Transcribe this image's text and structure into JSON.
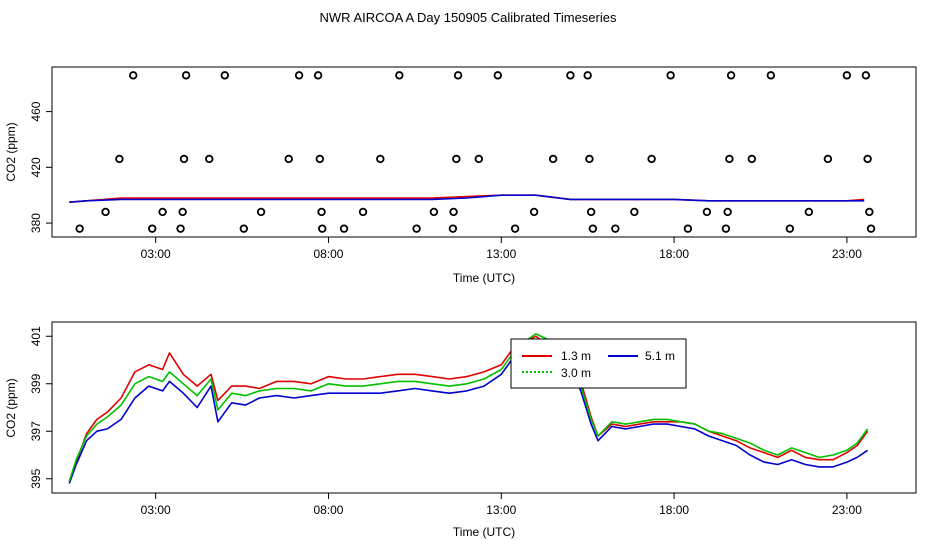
{
  "title": "NWR AIRCOA A  Day 150905  Calibrated Timeseries",
  "colors": {
    "red": "#e00000",
    "blue": "#0000d0",
    "green": "#00c000",
    "purple": "#7a2aa0",
    "axis": "#000000"
  },
  "chart_data": [
    {
      "type": "scatter",
      "title": "",
      "xlabel": "Time (UTC)",
      "ylabel": "CO2 (ppm)",
      "xlim": [
        0,
        25
      ],
      "ylim": [
        370,
        492
      ],
      "x_ticks": [
        3,
        8,
        13,
        18,
        23
      ],
      "x_tick_labels": [
        "03:00",
        "08:00",
        "13:00",
        "18:00",
        "23:00"
      ],
      "y_ticks": [
        380,
        420,
        460
      ],
      "y_tick_labels": [
        "380",
        "420",
        "460"
      ],
      "grid": false,
      "outliers": [
        {
          "x": 0.8,
          "y": 376
        },
        {
          "x": 1.55,
          "y": 388
        },
        {
          "x": 1.95,
          "y": 426
        },
        {
          "x": 2.35,
          "y": 486
        },
        {
          "x": 2.9,
          "y": 376
        },
        {
          "x": 3.2,
          "y": 388
        },
        {
          "x": 3.72,
          "y": 376
        },
        {
          "x": 3.78,
          "y": 388
        },
        {
          "x": 3.82,
          "y": 426
        },
        {
          "x": 3.88,
          "y": 486
        },
        {
          "x": 4.55,
          "y": 426
        },
        {
          "x": 5.0,
          "y": 486
        },
        {
          "x": 5.55,
          "y": 376
        },
        {
          "x": 6.05,
          "y": 388
        },
        {
          "x": 6.85,
          "y": 426
        },
        {
          "x": 7.15,
          "y": 486
        },
        {
          "x": 7.7,
          "y": 486
        },
        {
          "x": 7.75,
          "y": 426
        },
        {
          "x": 7.8,
          "y": 388
        },
        {
          "x": 7.82,
          "y": 376
        },
        {
          "x": 8.45,
          "y": 376
        },
        {
          "x": 9.0,
          "y": 388
        },
        {
          "x": 9.5,
          "y": 426
        },
        {
          "x": 10.05,
          "y": 486
        },
        {
          "x": 10.55,
          "y": 376
        },
        {
          "x": 11.05,
          "y": 388
        },
        {
          "x": 11.6,
          "y": 376
        },
        {
          "x": 11.62,
          "y": 388
        },
        {
          "x": 11.7,
          "y": 426
        },
        {
          "x": 11.75,
          "y": 486
        },
        {
          "x": 12.35,
          "y": 426
        },
        {
          "x": 12.9,
          "y": 486
        },
        {
          "x": 13.4,
          "y": 376
        },
        {
          "x": 13.95,
          "y": 388
        },
        {
          "x": 14.5,
          "y": 426
        },
        {
          "x": 15.0,
          "y": 486
        },
        {
          "x": 15.5,
          "y": 486
        },
        {
          "x": 15.55,
          "y": 426
        },
        {
          "x": 15.6,
          "y": 388
        },
        {
          "x": 15.65,
          "y": 376
        },
        {
          "x": 16.3,
          "y": 376
        },
        {
          "x": 16.85,
          "y": 388
        },
        {
          "x": 17.35,
          "y": 426
        },
        {
          "x": 17.9,
          "y": 486
        },
        {
          "x": 18.4,
          "y": 376
        },
        {
          "x": 18.95,
          "y": 388
        },
        {
          "x": 19.5,
          "y": 376
        },
        {
          "x": 19.55,
          "y": 388
        },
        {
          "x": 19.6,
          "y": 426
        },
        {
          "x": 19.65,
          "y": 486
        },
        {
          "x": 20.25,
          "y": 426
        },
        {
          "x": 20.8,
          "y": 486
        },
        {
          "x": 21.35,
          "y": 376
        },
        {
          "x": 21.9,
          "y": 388
        },
        {
          "x": 22.45,
          "y": 426
        },
        {
          "x": 23.0,
          "y": 486
        },
        {
          "x": 23.55,
          "y": 486
        },
        {
          "x": 23.6,
          "y": 426
        },
        {
          "x": 23.65,
          "y": 388
        },
        {
          "x": 23.7,
          "y": 376
        }
      ],
      "series": [
        {
          "color": "#e00000",
          "x": [
            0.5,
            1,
            2,
            3,
            4,
            5,
            6,
            7,
            8,
            9,
            10,
            11,
            12,
            13,
            14,
            15,
            16,
            17,
            18,
            19,
            20,
            21,
            22,
            23,
            23.5
          ],
          "y": [
            395,
            396,
            398,
            398,
            398,
            398,
            398,
            398,
            398,
            398,
            398,
            398,
            399,
            400,
            400,
            397,
            397,
            397,
            397,
            396,
            396,
            396,
            396,
            396,
            397
          ]
        },
        {
          "color": "#0000d0",
          "x": [
            0.5,
            1,
            2,
            3,
            4,
            5,
            6,
            7,
            8,
            9,
            10,
            11,
            12,
            13,
            14,
            15,
            16,
            17,
            18,
            19,
            20,
            21,
            22,
            23,
            23.5
          ],
          "y": [
            395,
            396,
            397,
            397,
            397,
            397,
            397,
            397,
            397,
            397,
            397,
            397,
            398,
            400,
            400,
            397,
            397,
            397,
            397,
            396,
            396,
            396,
            396,
            396,
            396
          ]
        }
      ]
    },
    {
      "type": "line",
      "title": "",
      "xlabel": "Time (UTC)",
      "ylabel": "CO2 (ppm)",
      "xlim": [
        0,
        25
      ],
      "ylim": [
        394.4,
        401.6
      ],
      "x_ticks": [
        3,
        8,
        13,
        18,
        23
      ],
      "x_tick_labels": [
        "03:00",
        "08:00",
        "13:00",
        "18:00",
        "23:00"
      ],
      "y_ticks": [
        395,
        397,
        399,
        401
      ],
      "y_tick_labels": [
        "395",
        "397",
        "399",
        "401"
      ],
      "grid": false,
      "legend_position": "top-center",
      "series": [
        {
          "name": "1.3 m",
          "color": "#e00000",
          "x": [
            0.5,
            0.7,
            1.0,
            1.3,
            1.6,
            2.0,
            2.4,
            2.8,
            3.2,
            3.4,
            3.8,
            4.2,
            4.6,
            4.8,
            5.2,
            5.6,
            6.0,
            6.5,
            7.0,
            7.5,
            8.0,
            8.5,
            9.0,
            9.5,
            10.0,
            10.5,
            11.0,
            11.5,
            12.0,
            12.5,
            13.0,
            13.3,
            13.6,
            14.0,
            14.3,
            14.6,
            15.0,
            15.3,
            15.6,
            15.8,
            16.2,
            16.6,
            17.0,
            17.4,
            17.8,
            18.2,
            18.6,
            19.0,
            19.4,
            19.8,
            20.2,
            20.6,
            21.0,
            21.4,
            21.8,
            22.2,
            22.6,
            23.0,
            23.3,
            23.6
          ],
          "y": [
            394.9,
            395.7,
            396.9,
            397.5,
            397.8,
            398.4,
            399.5,
            399.8,
            399.6,
            400.3,
            399.4,
            398.9,
            399.4,
            398.3,
            398.9,
            398.9,
            398.8,
            399.1,
            399.1,
            399.0,
            399.3,
            399.2,
            399.2,
            399.3,
            399.4,
            399.4,
            399.3,
            399.2,
            399.3,
            399.5,
            399.8,
            400.4,
            400.7,
            401.0,
            400.7,
            400.3,
            399.9,
            399.1,
            397.6,
            396.8,
            397.3,
            397.2,
            397.3,
            397.4,
            397.4,
            397.4,
            397.3,
            397.0,
            396.8,
            396.6,
            396.3,
            396.1,
            395.9,
            396.2,
            395.9,
            395.8,
            395.8,
            396.1,
            396.4,
            397.0
          ]
        },
        {
          "name": "5.1 m",
          "color": "#0000d0",
          "x": [
            0.5,
            0.7,
            1.0,
            1.3,
            1.6,
            2.0,
            2.4,
            2.8,
            3.2,
            3.4,
            3.8,
            4.2,
            4.6,
            4.8,
            5.2,
            5.6,
            6.0,
            6.5,
            7.0,
            7.5,
            8.0,
            8.5,
            9.0,
            9.5,
            10.0,
            10.5,
            11.0,
            11.5,
            12.0,
            12.5,
            13.0,
            13.3,
            13.6,
            14.0,
            14.3,
            14.6,
            15.0,
            15.3,
            15.6,
            15.8,
            16.2,
            16.6,
            17.0,
            17.4,
            17.8,
            18.2,
            18.6,
            19.0,
            19.4,
            19.8,
            20.2,
            20.6,
            21.0,
            21.4,
            21.8,
            22.2,
            22.6,
            23.0,
            23.3,
            23.6
          ],
          "y": [
            394.8,
            395.6,
            396.6,
            397.0,
            397.1,
            397.5,
            398.4,
            398.9,
            398.7,
            399.1,
            398.6,
            398.0,
            398.9,
            397.4,
            398.2,
            398.1,
            398.4,
            398.5,
            398.4,
            398.5,
            398.6,
            398.6,
            398.6,
            398.6,
            398.7,
            398.8,
            398.7,
            398.6,
            398.7,
            398.9,
            399.4,
            400.0,
            400.5,
            400.8,
            400.6,
            400.1,
            399.6,
            398.7,
            397.3,
            396.6,
            397.2,
            397.1,
            397.2,
            397.3,
            397.3,
            397.2,
            397.1,
            396.8,
            396.6,
            396.4,
            396.0,
            395.7,
            395.6,
            395.8,
            395.6,
            395.5,
            395.5,
            395.7,
            395.9,
            396.2
          ]
        },
        {
          "name": "3.0 m",
          "color": "#00c000",
          "x": [
            0.5,
            0.7,
            1.0,
            1.3,
            1.6,
            2.0,
            2.4,
            2.8,
            3.2,
            3.4,
            3.8,
            4.2,
            4.6,
            4.8,
            5.2,
            5.6,
            6.0,
            6.5,
            7.0,
            7.5,
            8.0,
            8.5,
            9.0,
            9.5,
            10.0,
            10.5,
            11.0,
            11.5,
            12.0,
            12.5,
            13.0,
            13.3,
            13.6,
            14.0,
            14.3,
            14.6,
            15.0,
            15.3,
            15.6,
            15.8,
            16.2,
            16.6,
            17.0,
            17.4,
            17.8,
            18.2,
            18.6,
            19.0,
            19.4,
            19.8,
            20.2,
            20.6,
            21.0,
            21.4,
            21.8,
            22.2,
            22.6,
            23.0,
            23.3,
            23.6
          ],
          "y": [
            394.9,
            395.8,
            396.8,
            397.3,
            397.6,
            398.1,
            399.0,
            399.3,
            399.1,
            399.5,
            399.0,
            398.5,
            399.2,
            397.9,
            398.6,
            398.5,
            398.7,
            398.8,
            398.8,
            398.7,
            399.0,
            398.9,
            398.9,
            399.0,
            399.1,
            399.1,
            399.0,
            398.9,
            399.0,
            399.2,
            399.6,
            400.2,
            400.7,
            401.1,
            400.9,
            400.3,
            399.8,
            398.9,
            397.5,
            396.8,
            397.4,
            397.3,
            397.4,
            397.5,
            397.5,
            397.4,
            397.3,
            397.0,
            396.9,
            396.7,
            396.5,
            396.2,
            396.0,
            396.3,
            396.1,
            395.9,
            396.0,
            396.2,
            396.5,
            397.1
          ]
        }
      ]
    }
  ]
}
